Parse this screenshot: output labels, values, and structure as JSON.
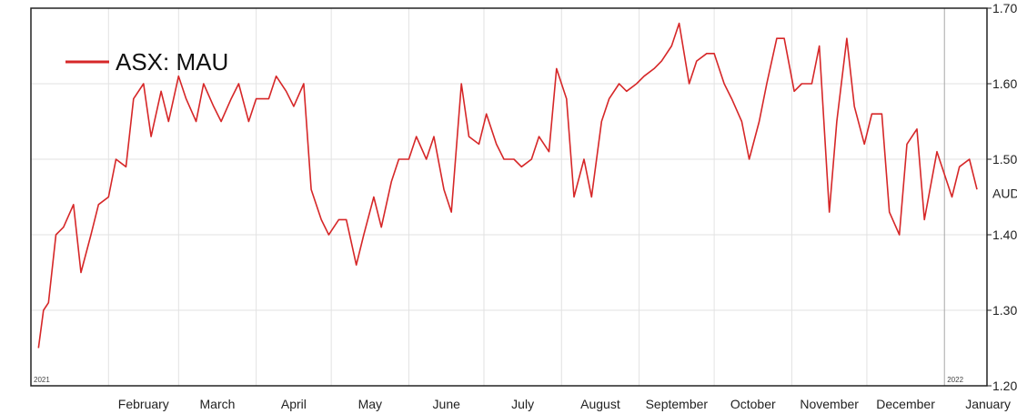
{
  "chart_data": {
    "type": "line",
    "title": "",
    "xlabel": "",
    "ylabel": "",
    "ylim": [
      1.2,
      1.7
    ],
    "grid": true,
    "legend_position": "top-left",
    "y_ticks": [
      "1.70",
      "1.60",
      "1.50",
      "1.40",
      "1.30",
      "1.20"
    ],
    "y_tick_values": [
      1.7,
      1.6,
      1.5,
      1.4,
      1.3,
      1.2
    ],
    "currency_label": "AUD",
    "months": [
      "February",
      "March",
      "April",
      "May",
      "June",
      "July",
      "August",
      "September",
      "October",
      "November",
      "December",
      "January"
    ],
    "year_labels": [
      "2021",
      "2022"
    ],
    "series": [
      {
        "name": "ASX: MAU",
        "color": "#d62728",
        "x": [
          "2021-01-04",
          "2021-01-06",
          "2021-01-08",
          "2021-01-11",
          "2021-01-14",
          "2021-01-18",
          "2021-01-21",
          "2021-01-25",
          "2021-01-28",
          "2021-02-01",
          "2021-02-04",
          "2021-02-08",
          "2021-02-11",
          "2021-02-15",
          "2021-02-18",
          "2021-02-22",
          "2021-02-25",
          "2021-03-01",
          "2021-03-04",
          "2021-03-08",
          "2021-03-11",
          "2021-03-15",
          "2021-03-18",
          "2021-03-22",
          "2021-03-25",
          "2021-03-29",
          "2021-04-01",
          "2021-04-06",
          "2021-04-09",
          "2021-04-13",
          "2021-04-16",
          "2021-04-20",
          "2021-04-23",
          "2021-04-27",
          "2021-04-30",
          "2021-05-04",
          "2021-05-07",
          "2021-05-11",
          "2021-05-14",
          "2021-05-18",
          "2021-05-21",
          "2021-05-25",
          "2021-05-28",
          "2021-06-01",
          "2021-06-04",
          "2021-06-08",
          "2021-06-11",
          "2021-06-15",
          "2021-06-18",
          "2021-06-22",
          "2021-06-25",
          "2021-06-29",
          "2021-07-02",
          "2021-07-06",
          "2021-07-09",
          "2021-07-13",
          "2021-07-16",
          "2021-07-20",
          "2021-07-23",
          "2021-07-27",
          "2021-07-30",
          "2021-08-03",
          "2021-08-06",
          "2021-08-10",
          "2021-08-13",
          "2021-08-17",
          "2021-08-20",
          "2021-08-24",
          "2021-08-27",
          "2021-08-31",
          "2021-09-03",
          "2021-09-07",
          "2021-09-10",
          "2021-09-14",
          "2021-09-17",
          "2021-09-21",
          "2021-09-24",
          "2021-09-28",
          "2021-10-01",
          "2021-10-05",
          "2021-10-08",
          "2021-10-12",
          "2021-10-15",
          "2021-10-19",
          "2021-10-22",
          "2021-10-26",
          "2021-10-29",
          "2021-11-02",
          "2021-11-05",
          "2021-11-09",
          "2021-11-12",
          "2021-11-16",
          "2021-11-19",
          "2021-11-23",
          "2021-11-26",
          "2021-11-30",
          "2021-12-03",
          "2021-12-07",
          "2021-12-10",
          "2021-12-14",
          "2021-12-17",
          "2021-12-21",
          "2021-12-24",
          "2021-12-29",
          "2022-01-04",
          "2022-01-07",
          "2022-01-11",
          "2022-01-14"
        ],
        "values": [
          1.25,
          1.3,
          1.31,
          1.4,
          1.41,
          1.44,
          1.35,
          1.4,
          1.44,
          1.45,
          1.5,
          1.49,
          1.58,
          1.6,
          1.53,
          1.59,
          1.55,
          1.61,
          1.58,
          1.55,
          1.6,
          1.57,
          1.55,
          1.58,
          1.6,
          1.55,
          1.58,
          1.58,
          1.61,
          1.59,
          1.57,
          1.6,
          1.46,
          1.42,
          1.4,
          1.42,
          1.42,
          1.36,
          1.4,
          1.45,
          1.41,
          1.47,
          1.5,
          1.5,
          1.53,
          1.5,
          1.53,
          1.46,
          1.43,
          1.6,
          1.53,
          1.52,
          1.56,
          1.52,
          1.5,
          1.5,
          1.49,
          1.5,
          1.53,
          1.51,
          1.62,
          1.58,
          1.45,
          1.5,
          1.45,
          1.55,
          1.58,
          1.6,
          1.59,
          1.6,
          1.61,
          1.62,
          1.63,
          1.65,
          1.68,
          1.6,
          1.63,
          1.64,
          1.64,
          1.6,
          1.58,
          1.55,
          1.5,
          1.55,
          1.6,
          1.66,
          1.66,
          1.59,
          1.6,
          1.6,
          1.65,
          1.43,
          1.55,
          1.66,
          1.57,
          1.52,
          1.56,
          1.56,
          1.43,
          1.4,
          1.52,
          1.54,
          1.42,
          1.51,
          1.45,
          1.49,
          1.5,
          1.46
        ]
      }
    ]
  }
}
